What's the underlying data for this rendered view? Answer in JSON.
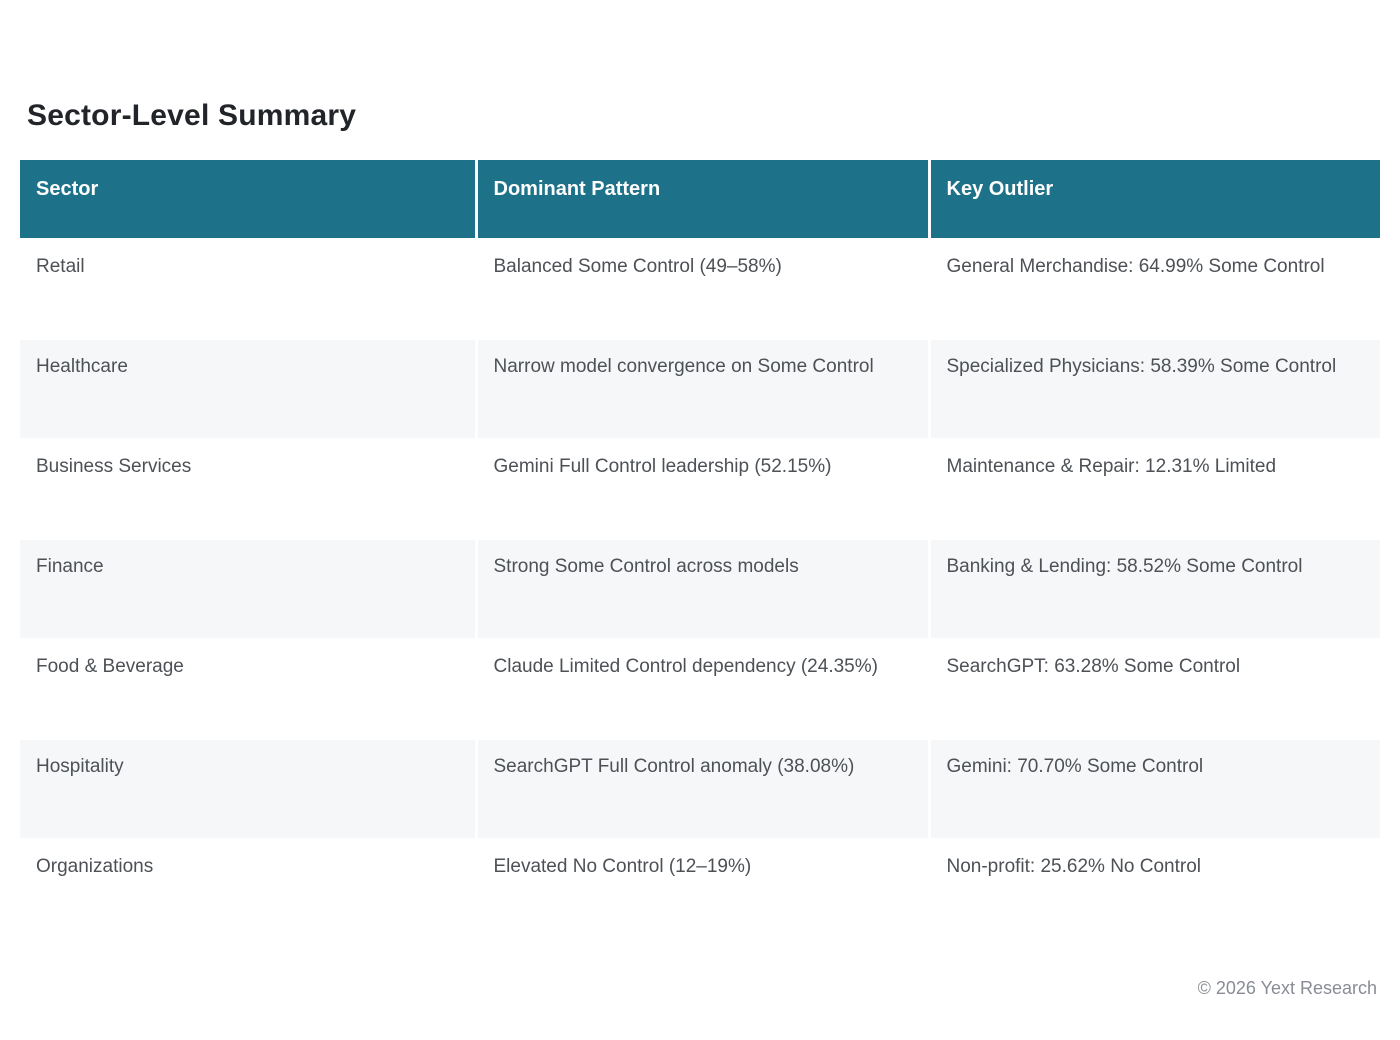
{
  "page": {
    "title": "Sector-Level Summary",
    "footer": "© 2026 Yext Research"
  },
  "colors": {
    "header_bg": "#1d7189",
    "header_text": "#ffffff",
    "alt_row_bg": "#f6f7f9",
    "body_text": "#4d5156",
    "title_text": "#212529",
    "footer_text": "#888d94"
  },
  "table": {
    "columns": [
      "Sector",
      "Dominant Pattern",
      "Key Outlier"
    ],
    "rows": [
      {
        "sector": "Retail",
        "pattern": "Balanced Some Control (49–58%)",
        "outlier": "General Merchandise: 64.99% Some Control"
      },
      {
        "sector": "Healthcare",
        "pattern": "Narrow model convergence on Some Control",
        "outlier": "Specialized Physicians: 58.39% Some Control"
      },
      {
        "sector": "Business Services",
        "pattern": "Gemini Full Control leadership (52.15%)",
        "outlier": "Maintenance & Repair: 12.31% Limited"
      },
      {
        "sector": "Finance",
        "pattern": "Strong Some Control across models",
        "outlier": "Banking & Lending: 58.52% Some Control"
      },
      {
        "sector": "Food & Beverage",
        "pattern": "Claude Limited Control dependency (24.35%)",
        "outlier": "SearchGPT: 63.28% Some Control"
      },
      {
        "sector": "Hospitality",
        "pattern": "SearchGPT Full Control anomaly (38.08%)",
        "outlier": "Gemini: 70.70% Some Control"
      },
      {
        "sector": "Organizations",
        "pattern": "Elevated No Control (12–19%)",
        "outlier": "Non-profit: 25.62% No Control"
      }
    ]
  }
}
